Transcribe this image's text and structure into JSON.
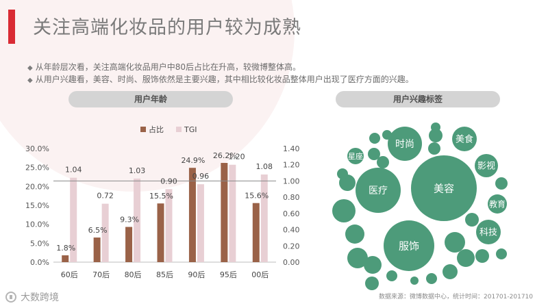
{
  "header": {
    "title": "关注高端化妆品的用户较为成熟"
  },
  "bullets": [
    "从年龄层次看，关注高端化妆品用户中80后占比在升高，较微博整体高。",
    "从用户兴趣看，美容、时尚、服饰依然是主要兴趣，其中相比较化妆品整体用户出现了医疗方面的兴趣。"
  ],
  "sections": {
    "left_pill": "用户年龄",
    "right_pill": "用户兴趣标签"
  },
  "colors": {
    "zhanbi": "#9a6248",
    "tgi": "#e8cfd4",
    "bubble": "#4d9b7a",
    "accent": "#d92b34"
  },
  "chart_data": {
    "type": "bar",
    "categories": [
      "60后",
      "70后",
      "80后",
      "85后",
      "90后",
      "95后",
      "00后"
    ],
    "series": [
      {
        "name": "占比",
        "axis": "left",
        "values": [
          1.8,
          6.5,
          9.3,
          15.5,
          24.9,
          26.2,
          15.6
        ],
        "labels": [
          "1.8%",
          "6.5%",
          "9.3%",
          "15.5%",
          "24.9%",
          "26.2%",
          "15.6%"
        ]
      },
      {
        "name": "TGI",
        "axis": "right",
        "values": [
          1.04,
          0.72,
          1.03,
          0.9,
          0.96,
          1.2,
          1.08
        ],
        "labels": [
          "1.04",
          "0.72",
          "1.03",
          "0.90",
          "0.96",
          "1.20",
          "1.08"
        ]
      }
    ],
    "yleft": {
      "min": 0,
      "max": 30,
      "ticks": [
        "0.0%",
        "5.0%",
        "10.0%",
        "15.0%",
        "20.0%",
        "25.0%",
        "30.0%"
      ]
    },
    "yright": {
      "min": 0,
      "max": 1.4,
      "ticks": [
        "0.00",
        "0.20",
        "0.40",
        "0.60",
        "0.80",
        "1.00",
        "1.20",
        "1.40"
      ]
    },
    "reference_line": 1.0,
    "legend_position": "top"
  },
  "interest_tags": [
    "美容",
    "服饰",
    "医疗",
    "时尚",
    "美食",
    "影视",
    "教育",
    "科技",
    "星座"
  ],
  "footer": {
    "source": "数据来源：微博数据中心，统计时间：201701-201710",
    "logo": "大数跨境"
  }
}
